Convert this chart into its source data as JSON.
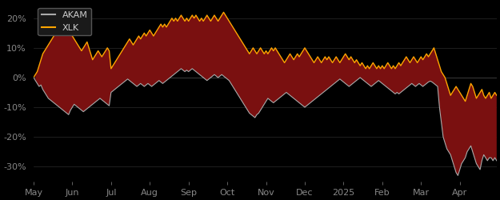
{
  "background_color": "#000000",
  "plot_bg_color": "#000000",
  "akam_color": "#aaaaaa",
  "xlk_color": "#FFA500",
  "fill_below_color": "#7a1010",
  "fill_above_color": "#1a6b6b",
  "legend_bg": "#1a1a1a",
  "legend_edge": "#555555",
  "axis_label_color": "#cccccc",
  "tick_color": "#888888",
  "grid_color": "#2a2a2a",
  "ylim": [
    -0.35,
    0.25
  ],
  "yticks": [
    -0.3,
    -0.2,
    -0.1,
    0.0,
    0.1,
    0.2
  ],
  "ytick_labels": [
    "-30%",
    "-20%",
    "-10%",
    "0%",
    "10%",
    "20%"
  ],
  "xtick_positions": [
    0,
    21,
    42,
    63,
    84,
    105,
    126,
    147,
    168,
    189,
    210,
    231
  ],
  "xtick_labels": [
    "May",
    "Jun",
    "Jul",
    "Aug",
    "Sep",
    "Oct",
    "Nov",
    "Dec",
    "2025",
    "Feb",
    "Mar",
    "Apr"
  ],
  "akam_data": [
    0.0,
    -0.01,
    -0.02,
    -0.03,
    -0.025,
    -0.04,
    -0.05,
    -0.06,
    -0.07,
    -0.075,
    -0.08,
    -0.085,
    -0.09,
    -0.095,
    -0.1,
    -0.105,
    -0.11,
    -0.115,
    -0.12,
    -0.125,
    -0.11,
    -0.1,
    -0.09,
    -0.095,
    -0.1,
    -0.105,
    -0.11,
    -0.115,
    -0.11,
    -0.105,
    -0.1,
    -0.095,
    -0.09,
    -0.085,
    -0.08,
    -0.075,
    -0.07,
    -0.075,
    -0.08,
    -0.085,
    -0.09,
    -0.095,
    -0.05,
    -0.045,
    -0.04,
    -0.035,
    -0.03,
    -0.025,
    -0.02,
    -0.015,
    -0.01,
    -0.005,
    -0.01,
    -0.015,
    -0.02,
    -0.025,
    -0.03,
    -0.025,
    -0.02,
    -0.025,
    -0.03,
    -0.025,
    -0.02,
    -0.025,
    -0.03,
    -0.025,
    -0.02,
    -0.015,
    -0.01,
    -0.015,
    -0.02,
    -0.015,
    -0.01,
    -0.005,
    0.0,
    0.005,
    0.01,
    0.015,
    0.02,
    0.025,
    0.03,
    0.025,
    0.02,
    0.025,
    0.02,
    0.025,
    0.03,
    0.025,
    0.02,
    0.015,
    0.01,
    0.005,
    0.0,
    -0.005,
    -0.01,
    -0.005,
    0.0,
    0.005,
    0.01,
    0.005,
    0.0,
    0.005,
    0.01,
    0.005,
    0.0,
    -0.005,
    -0.01,
    -0.02,
    -0.03,
    -0.04,
    -0.05,
    -0.06,
    -0.07,
    -0.08,
    -0.09,
    -0.1,
    -0.11,
    -0.12,
    -0.125,
    -0.13,
    -0.135,
    -0.125,
    -0.12,
    -0.11,
    -0.1,
    -0.09,
    -0.08,
    -0.07,
    -0.075,
    -0.08,
    -0.085,
    -0.08,
    -0.075,
    -0.07,
    -0.065,
    -0.06,
    -0.055,
    -0.05,
    -0.055,
    -0.06,
    -0.065,
    -0.07,
    -0.075,
    -0.08,
    -0.085,
    -0.09,
    -0.095,
    -0.1,
    -0.095,
    -0.09,
    -0.085,
    -0.08,
    -0.075,
    -0.07,
    -0.065,
    -0.06,
    -0.055,
    -0.05,
    -0.045,
    -0.04,
    -0.035,
    -0.03,
    -0.025,
    -0.02,
    -0.015,
    -0.01,
    -0.005,
    -0.01,
    -0.015,
    -0.02,
    -0.025,
    -0.03,
    -0.025,
    -0.02,
    -0.015,
    -0.01,
    -0.005,
    0.0,
    -0.005,
    -0.01,
    -0.015,
    -0.02,
    -0.025,
    -0.03,
    -0.025,
    -0.02,
    -0.015,
    -0.01,
    -0.015,
    -0.02,
    -0.025,
    -0.03,
    -0.035,
    -0.04,
    -0.045,
    -0.05,
    -0.055,
    -0.05,
    -0.055,
    -0.05,
    -0.045,
    -0.04,
    -0.035,
    -0.03,
    -0.025,
    -0.02,
    -0.025,
    -0.03,
    -0.025,
    -0.02,
    -0.025,
    -0.03,
    -0.025,
    -0.02,
    -0.015,
    -0.012,
    -0.015,
    -0.02,
    -0.025,
    -0.03,
    -0.1,
    -0.15,
    -0.2,
    -0.22,
    -0.24,
    -0.25,
    -0.26,
    -0.28,
    -0.3,
    -0.32,
    -0.33,
    -0.31,
    -0.29,
    -0.28,
    -0.27,
    -0.25,
    -0.24,
    -0.23,
    -0.25,
    -0.27,
    -0.29,
    -0.3,
    -0.31,
    -0.28,
    -0.26,
    -0.27,
    -0.28,
    -0.27,
    -0.27,
    -0.28,
    -0.27,
    -0.28
  ],
  "xlk_data": [
    0.0,
    0.01,
    0.02,
    0.04,
    0.06,
    0.08,
    0.09,
    0.1,
    0.11,
    0.12,
    0.13,
    0.14,
    0.15,
    0.16,
    0.17,
    0.18,
    0.17,
    0.16,
    0.15,
    0.16,
    0.15,
    0.14,
    0.13,
    0.12,
    0.11,
    0.1,
    0.09,
    0.1,
    0.11,
    0.12,
    0.1,
    0.08,
    0.06,
    0.07,
    0.08,
    0.09,
    0.08,
    0.07,
    0.08,
    0.09,
    0.1,
    0.09,
    0.03,
    0.04,
    0.05,
    0.06,
    0.07,
    0.08,
    0.09,
    0.1,
    0.11,
    0.12,
    0.13,
    0.12,
    0.11,
    0.12,
    0.13,
    0.14,
    0.13,
    0.14,
    0.15,
    0.14,
    0.15,
    0.16,
    0.15,
    0.14,
    0.15,
    0.16,
    0.17,
    0.18,
    0.17,
    0.18,
    0.17,
    0.18,
    0.19,
    0.2,
    0.19,
    0.2,
    0.19,
    0.2,
    0.21,
    0.2,
    0.19,
    0.2,
    0.19,
    0.2,
    0.21,
    0.2,
    0.21,
    0.2,
    0.19,
    0.2,
    0.19,
    0.2,
    0.21,
    0.2,
    0.19,
    0.2,
    0.21,
    0.2,
    0.19,
    0.2,
    0.21,
    0.22,
    0.21,
    0.2,
    0.19,
    0.18,
    0.17,
    0.16,
    0.15,
    0.14,
    0.13,
    0.12,
    0.11,
    0.1,
    0.09,
    0.08,
    0.09,
    0.1,
    0.09,
    0.08,
    0.09,
    0.1,
    0.09,
    0.08,
    0.09,
    0.08,
    0.09,
    0.1,
    0.09,
    0.1,
    0.09,
    0.08,
    0.07,
    0.06,
    0.05,
    0.06,
    0.07,
    0.08,
    0.07,
    0.06,
    0.07,
    0.08,
    0.07,
    0.08,
    0.09,
    0.1,
    0.09,
    0.08,
    0.07,
    0.06,
    0.05,
    0.06,
    0.07,
    0.06,
    0.05,
    0.06,
    0.07,
    0.06,
    0.07,
    0.06,
    0.05,
    0.06,
    0.07,
    0.06,
    0.05,
    0.06,
    0.07,
    0.08,
    0.07,
    0.06,
    0.07,
    0.06,
    0.05,
    0.06,
    0.05,
    0.04,
    0.05,
    0.04,
    0.03,
    0.04,
    0.03,
    0.04,
    0.05,
    0.04,
    0.03,
    0.04,
    0.03,
    0.04,
    0.03,
    0.04,
    0.05,
    0.04,
    0.03,
    0.04,
    0.03,
    0.04,
    0.05,
    0.04,
    0.05,
    0.06,
    0.07,
    0.06,
    0.05,
    0.06,
    0.07,
    0.06,
    0.05,
    0.06,
    0.07,
    0.06,
    0.07,
    0.08,
    0.07,
    0.08,
    0.09,
    0.1,
    0.08,
    0.06,
    0.04,
    0.02,
    0.01,
    0.0,
    -0.02,
    -0.04,
    -0.06,
    -0.05,
    -0.04,
    -0.03,
    -0.04,
    -0.05,
    -0.06,
    -0.07,
    -0.08,
    -0.06,
    -0.04,
    -0.02,
    -0.03,
    -0.05,
    -0.07,
    -0.06,
    -0.05,
    -0.04,
    -0.06,
    -0.07,
    -0.06,
    -0.05,
    -0.07,
    -0.06,
    -0.05,
    -0.06,
    -0.05,
    -0.06
  ]
}
